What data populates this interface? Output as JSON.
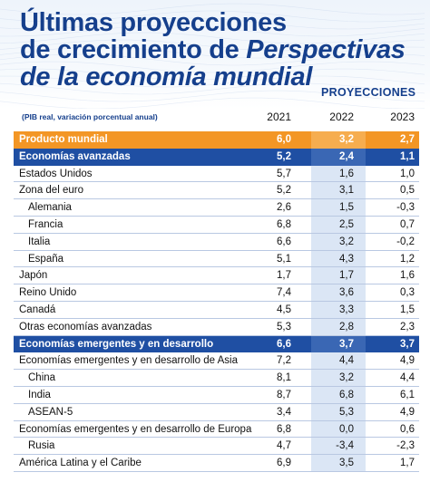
{
  "header": {
    "title_line1": "Últimas proyecciones",
    "title_line2a": "de crecimiento de ",
    "title_line2b": "Perspectivas",
    "title_line3": "de la economía mundial",
    "tag": "PROYECCIONES",
    "subtitle": "(PIB real, variación porcentual anual)"
  },
  "colors": {
    "title": "#153f8c",
    "world_row": "#f39625",
    "group_row": "#1f4fa3",
    "band": "#dbe6f5"
  },
  "years": [
    "2021",
    "2022",
    "2023"
  ],
  "rows": [
    {
      "label": "Producto mundial",
      "values": [
        "6,0",
        "3,2",
        "2,7"
      ],
      "style": "world"
    },
    {
      "label": "Economías avanzadas",
      "values": [
        "5,2",
        "2,4",
        "1,1"
      ],
      "style": "dark"
    },
    {
      "label": "Estados Unidos",
      "values": [
        "5,7",
        "1,6",
        "1,0"
      ],
      "style": "normal"
    },
    {
      "label": "Zona del euro",
      "values": [
        "5,2",
        "3,1",
        "0,5"
      ],
      "style": "normal"
    },
    {
      "label": "Alemania",
      "values": [
        "2,6",
        "1,5",
        "-0,3"
      ],
      "style": "sub"
    },
    {
      "label": "Francia",
      "values": [
        "6,8",
        "2,5",
        "0,7"
      ],
      "style": "sub"
    },
    {
      "label": "Italia",
      "values": [
        "6,6",
        "3,2",
        "-0,2"
      ],
      "style": "sub"
    },
    {
      "label": "España",
      "values": [
        "5,1",
        "4,3",
        "1,2"
      ],
      "style": "sub"
    },
    {
      "label": "Japón",
      "values": [
        "1,7",
        "1,7",
        "1,6"
      ],
      "style": "normal"
    },
    {
      "label": "Reino Unido",
      "values": [
        "7,4",
        "3,6",
        "0,3"
      ],
      "style": "normal"
    },
    {
      "label": "Canadá",
      "values": [
        "4,5",
        "3,3",
        "1,5"
      ],
      "style": "normal"
    },
    {
      "label": "Otras economías avanzadas",
      "values": [
        "5,3",
        "2,8",
        "2,3"
      ],
      "style": "normal"
    },
    {
      "label": "Economías emergentes y en desarrollo",
      "values": [
        "6,6",
        "3,7",
        "3,7"
      ],
      "style": "dark"
    },
    {
      "label": "Economías emergentes y en desarrollo de Asia",
      "values": [
        "7,2",
        "4,4",
        "4,9"
      ],
      "style": "normal"
    },
    {
      "label": "China",
      "values": [
        "8,1",
        "3,2",
        "4,4"
      ],
      "style": "sub"
    },
    {
      "label": "India",
      "values": [
        "8,7",
        "6,8",
        "6,1"
      ],
      "style": "sub"
    },
    {
      "label": "ASEAN-5",
      "values": [
        "3,4",
        "5,3",
        "4,9"
      ],
      "style": "sub"
    },
    {
      "label": "Economías emergentes y en desarrollo de Europa",
      "values": [
        "6,8",
        "0,0",
        "0,6"
      ],
      "style": "normal"
    },
    {
      "label": "Rusia",
      "values": [
        "4,7",
        "-3,4",
        "-2,3"
      ],
      "style": "sub"
    },
    {
      "label": "América Latina y el Caribe",
      "values": [
        "6,9",
        "3,5",
        "1,7"
      ],
      "style": "normal"
    }
  ]
}
